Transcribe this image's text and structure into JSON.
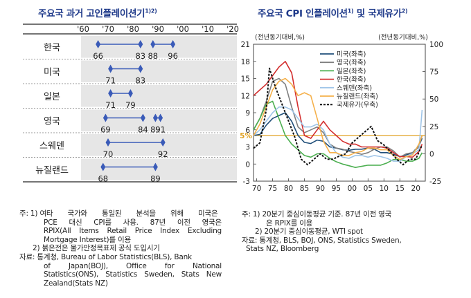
{
  "left": {
    "title": "주요국 과거 고인플레이션기",
    "title_sup": "1)2)",
    "decade_labels": [
      "'60",
      "'70",
      "'80",
      "'90",
      "'00",
      "'10",
      "'20"
    ],
    "rows": [
      {
        "country": "한국",
        "labels": [
          "66",
          "83",
          "88",
          "96"
        ],
        "segments": [
          [
            1966,
            1983
          ],
          [
            1988,
            1996
          ]
        ]
      },
      {
        "country": "미국",
        "labels": [
          "71",
          "83"
        ],
        "segments": [
          [
            1971,
            1983
          ]
        ]
      },
      {
        "country": "일본",
        "labels": [
          "71",
          "79"
        ],
        "segments": [
          [
            1971,
            1979
          ]
        ]
      },
      {
        "country": "영국",
        "labels": [
          "69",
          "84",
          "89",
          "91"
        ],
        "segments": [
          [
            1969,
            1984
          ],
          [
            1989,
            1991
          ]
        ]
      },
      {
        "country": "스웨덴",
        "labels": [
          "70",
          "92"
        ],
        "segments": [
          [
            1970,
            1992
          ]
        ]
      },
      {
        "country": "뉴질랜드",
        "labels": [
          "68",
          "89"
        ],
        "segments": [
          [
            1968,
            1989
          ]
        ]
      }
    ],
    "notes": {
      "n1_prefix": "주: 1)",
      "n1_a": "여타 국가와 통일된 분석을 위해 미국은",
      "n1_b": "PCE 대신 CPI를 사용. 87년 이전 영국은",
      "n1_c": "RPIX(All Items Retail Price Index Excluding",
      "n1_d": "Mortgage Interest)를 이용",
      "n2": "2) 붉은전은 물가안정목표제 공식 도입시기",
      "src_prefix": "자료:",
      "src_a": "통계청, Bureau of Labor Statistics(BLS), Bank",
      "src_b": "of Japan(BOJ), Office for National",
      "src_c": "Statistics(ONS), Statistics Sweden, Stats New",
      "src_d": "Zealand(Stats NZ)"
    }
  },
  "right": {
    "title": "주요국 CPI 인플레이션",
    "title_sup1": "1)",
    "title_mid": " 및 국제유가",
    "title_sup2": "2)",
    "left_axis_unit": "(전년동기대비,%)",
    "right_axis_unit": "(전년동기대비,%)",
    "left_ticks": [
      "21",
      "18",
      "15",
      "12",
      "9",
      "6",
      "3",
      "0",
      "-3"
    ],
    "right_ticks": [
      "100",
      "75",
      "50",
      "25",
      "0",
      "-25"
    ],
    "x_ticks": [
      "70",
      "75",
      "80",
      "85",
      "90",
      "95",
      "00",
      "05",
      "10",
      "15",
      "20"
    ],
    "ref_label": "5%",
    "notes": {
      "n1_prefix": "주: 1)",
      "n1_a": "20분기 중심이동평균 기준. 87년 이전 영국",
      "n1_b": "은 RPIX를 이용",
      "n2": "2) 20분기 중심이동평균, WTI spot",
      "src_prefix": "자료:",
      "src_a": "통계청, BLS, BOJ, ONS, Statistics Sweden,",
      "src_b": "Stats NZ, Bloomberg"
    }
  },
  "chart_data": [
    {
      "type": "timeline",
      "title": "주요국 과거 고인플레이션기",
      "x_range": [
        1960,
        2020
      ],
      "rows": [
        {
          "country": "한국",
          "periods": [
            [
              1966,
              1983
            ],
            [
              1988,
              1996
            ]
          ]
        },
        {
          "country": "미국",
          "periods": [
            [
              1971,
              1983
            ]
          ]
        },
        {
          "country": "일본",
          "periods": [
            [
              1971,
              1979
            ]
          ]
        },
        {
          "country": "영국",
          "periods": [
            [
              1969,
              1984
            ],
            [
              1989,
              1991
            ]
          ]
        },
        {
          "country": "스웨덴",
          "periods": [
            [
              1970,
              1992
            ]
          ]
        },
        {
          "country": "뉴질랜드",
          "periods": [
            [
              1968,
              1989
            ]
          ]
        }
      ]
    },
    {
      "type": "line",
      "title": "주요국 CPI 인플레이션 및 국제유가",
      "xlim": [
        1969,
        2023
      ],
      "ylim": [
        -3,
        21
      ],
      "y2lim": [
        -25,
        100
      ],
      "reference_line": 5,
      "series": [
        {
          "name": "미국(좌축)",
          "color": "#1f4e79",
          "axis": "left",
          "style": "solid",
          "x": [
            1969,
            1971,
            1973,
            1975,
            1977,
            1979,
            1981,
            1983,
            1985,
            1987,
            1989,
            1991,
            1993,
            1995,
            1997,
            1999,
            2001,
            2003,
            2005,
            2007,
            2009,
            2011,
            2013,
            2015,
            2017,
            2019,
            2021,
            2022
          ],
          "y": [
            5.0,
            5.2,
            6.8,
            8.0,
            8.5,
            9.0,
            7.5,
            5.0,
            3.8,
            3.6,
            4.2,
            4.0,
            3.0,
            2.8,
            2.5,
            2.4,
            2.6,
            2.6,
            2.8,
            2.6,
            2.0,
            2.0,
            1.7,
            1.3,
            1.6,
            2.0,
            3.2,
            4.5
          ]
        },
        {
          "name": "영국(좌축)",
          "color": "#7f7f7f",
          "axis": "left",
          "style": "solid",
          "x": [
            1969,
            1971,
            1973,
            1975,
            1977,
            1979,
            1981,
            1983,
            1985,
            1987,
            1989,
            1991,
            1993,
            1995,
            1997,
            1999,
            2001,
            2003,
            2005,
            2007,
            2009,
            2011,
            2013,
            2015,
            2017,
            2019,
            2021,
            2022
          ],
          "y": [
            6.0,
            8.0,
            11.0,
            14.5,
            15.0,
            14.0,
            10.0,
            6.5,
            5.5,
            6.0,
            6.5,
            5.5,
            3.5,
            2.8,
            2.6,
            2.2,
            2.0,
            1.7,
            2.0,
            2.6,
            3.0,
            3.0,
            2.3,
            1.2,
            1.8,
            2.0,
            3.0,
            5.0
          ]
        },
        {
          "name": "일본(좌축)",
          "color": "#4caf50",
          "axis": "left",
          "style": "solid",
          "x": [
            1969,
            1971,
            1973,
            1975,
            1977,
            1979,
            1981,
            1983,
            1985,
            1987,
            1989,
            1991,
            1993,
            1995,
            1997,
            1999,
            2001,
            2003,
            2005,
            2007,
            2009,
            2011,
            2013,
            2015,
            2017,
            2019,
            2021,
            2022
          ],
          "y": [
            6.0,
            8.0,
            10.5,
            11.0,
            8.0,
            5.0,
            3.5,
            2.5,
            1.5,
            1.2,
            1.8,
            1.8,
            1.0,
            0.4,
            0.0,
            -0.3,
            -0.6,
            -0.4,
            -0.2,
            -0.2,
            -0.2,
            0.2,
            0.8,
            0.8,
            0.5,
            0.5,
            1.0,
            2.0
          ]
        },
        {
          "name": "한국(좌축)",
          "color": "#d32f2f",
          "axis": "left",
          "style": "solid",
          "x": [
            1969,
            1971,
            1973,
            1975,
            1977,
            1979,
            1981,
            1983,
            1985,
            1987,
            1989,
            1991,
            1993,
            1995,
            1997,
            1999,
            2001,
            2003,
            2005,
            2007,
            2009,
            2011,
            2013,
            2015,
            2017,
            2019,
            2021,
            2022
          ],
          "y": [
            12.0,
            13.0,
            14.0,
            15.5,
            17.0,
            18.0,
            16.0,
            10.0,
            5.0,
            4.5,
            6.0,
            7.5,
            6.0,
            5.0,
            4.0,
            3.5,
            3.5,
            3.0,
            3.0,
            3.0,
            3.0,
            2.8,
            2.0,
            1.3,
            1.3,
            1.2,
            2.2,
            3.5
          ]
        },
        {
          "name": "스웨덴(좌축)",
          "color": "#9fc5e8",
          "axis": "left",
          "style": "solid",
          "x": [
            1969,
            1971,
            1973,
            1975,
            1977,
            1979,
            1981,
            1983,
            1985,
            1987,
            1989,
            1991,
            1993,
            1995,
            1997,
            1999,
            2001,
            2003,
            2005,
            2007,
            2009,
            2011,
            2013,
            2015,
            2017,
            2019,
            2021,
            2022
          ],
          "y": [
            5.0,
            6.0,
            7.5,
            9.0,
            10.0,
            10.0,
            9.5,
            8.0,
            6.5,
            6.5,
            7.0,
            6.0,
            3.5,
            2.0,
            1.2,
            1.0,
            1.5,
            1.5,
            1.2,
            1.5,
            1.3,
            1.0,
            0.5,
            0.5,
            1.3,
            1.8,
            2.5,
            9.5
          ]
        },
        {
          "name": "뉴질랜드(좌축)",
          "color": "#f5b04a",
          "axis": "left",
          "style": "solid",
          "x": [
            1969,
            1971,
            1973,
            1975,
            1977,
            1979,
            1981,
            1983,
            1985,
            1987,
            1989,
            1991,
            1993,
            1995,
            1997,
            1999,
            2001,
            2003,
            2005,
            2007,
            2009,
            2011,
            2013,
            2015,
            2017,
            2019,
            2021,
            2022
          ],
          "y": [
            5.0,
            7.0,
            10.0,
            13.0,
            14.5,
            15.0,
            14.0,
            12.0,
            12.5,
            12.0,
            8.0,
            4.0,
            2.0,
            2.0,
            1.5,
            1.5,
            2.0,
            2.2,
            2.8,
            2.8,
            2.5,
            2.5,
            1.5,
            0.8,
            1.3,
            1.6,
            3.5,
            5.0
          ]
        },
        {
          "name": "국제유가(우축)",
          "color": "#111111",
          "axis": "right",
          "style": "dashed",
          "x": [
            1969,
            1971,
            1973,
            1974,
            1976,
            1978,
            1980,
            1982,
            1984,
            1986,
            1988,
            1990,
            1992,
            1994,
            1996,
            1998,
            2000,
            2002,
            2004,
            2006,
            2008,
            2010,
            2012,
            2014,
            2016,
            2018,
            2020,
            2022
          ],
          "y": [
            5,
            10,
            40,
            78,
            60,
            45,
            30,
            15,
            -5,
            -10,
            -5,
            0,
            -5,
            -5,
            -2,
            0,
            10,
            15,
            20,
            25,
            12,
            8,
            2,
            -5,
            -10,
            -5,
            -5,
            8
          ]
        }
      ]
    }
  ]
}
